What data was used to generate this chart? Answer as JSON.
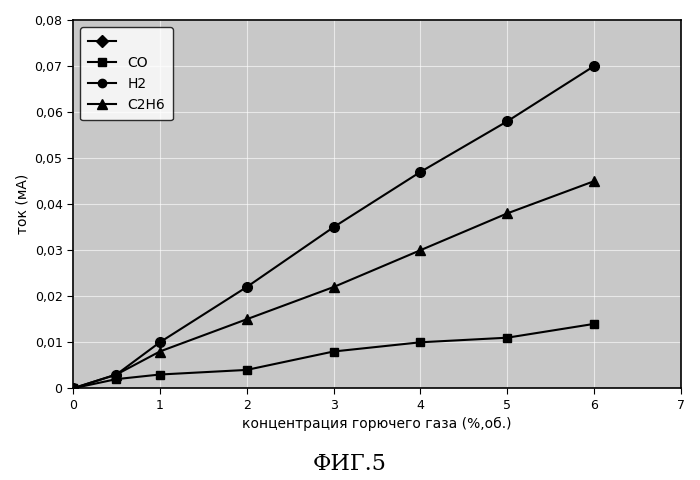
{
  "x_H2": [
    0,
    0.5,
    1,
    2,
    3,
    4,
    5,
    6
  ],
  "y_H2": [
    0,
    0.003,
    0.01,
    0.022,
    0.035,
    0.047,
    0.058,
    0.07
  ],
  "x_CO": [
    0,
    0.5,
    1,
    2,
    3,
    4,
    5,
    6
  ],
  "y_CO": [
    0,
    0.002,
    0.003,
    0.004,
    0.008,
    0.01,
    0.011,
    0.014
  ],
  "x_C2H6": [
    0,
    0.5,
    1,
    2,
    3,
    4,
    5,
    6
  ],
  "y_C2H6": [
    0,
    0.003,
    0.008,
    0.015,
    0.022,
    0.03,
    0.038,
    0.045
  ],
  "xlabel": "концентрация горючего газа (%,об.)",
  "ylabel": "ток (мА)",
  "title": "ФИГ.5",
  "xlim": [
    0,
    7
  ],
  "ylim": [
    0,
    0.08
  ],
  "xticks": [
    0,
    1,
    2,
    3,
    4,
    5,
    6,
    7
  ],
  "yticks": [
    0,
    0.01,
    0.02,
    0.03,
    0.04,
    0.05,
    0.06,
    0.07,
    0.08
  ],
  "fig_bg": "#ffffff",
  "plot_bg": "#c8c8c8",
  "line_color": "#000000",
  "legend_frame_color": "#ffffff",
  "grid_color": "#ffffff",
  "marker_size_circle": 7,
  "marker_size_square": 6,
  "marker_size_triangle": 7,
  "linewidth": 1.5,
  "title_fontsize": 16,
  "axis_fontsize": 10,
  "tick_fontsize": 9,
  "legend_fontsize": 10
}
